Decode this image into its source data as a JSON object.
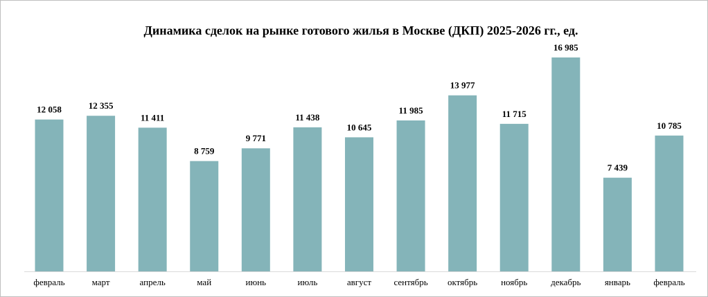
{
  "chart_data": {
    "type": "bar",
    "title": "Динамика сделок на рынке готового жилья в Москве (ДКП) 2025-2026 гг., ед.",
    "categories": [
      "февраль",
      "март",
      "апрель",
      "май",
      "июнь",
      "июль",
      "август",
      "сентябрь",
      "октябрь",
      "ноябрь",
      "декабрь",
      "январь",
      "февраль"
    ],
    "values": [
      12058,
      12355,
      11411,
      8759,
      9771,
      11438,
      10645,
      11985,
      13977,
      11715,
      16985,
      7439,
      10785
    ],
    "value_labels": [
      "12 058",
      "12 355",
      "11 411",
      "8 759",
      "9 771",
      "11 438",
      "10 645",
      "11 985",
      "13 977",
      "11 715",
      "16 985",
      "7 439",
      "10 785"
    ],
    "color": "#84b4b9"
  }
}
